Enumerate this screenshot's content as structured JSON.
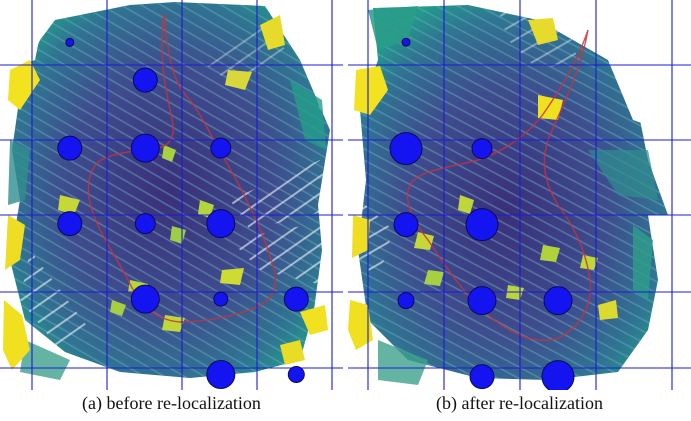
{
  "figure": {
    "colors": {
      "grid": "#1c1cd6",
      "landmark_fill": "#1414f0",
      "landmark_stroke": "#0a0a55",
      "trajectory": "#c8323c",
      "pointcloud_deep": "#3f3d86",
      "pointcloud_mid": "#2f6e90",
      "pointcloud_teal": "#1f9a8a",
      "pointcloud_yellow": "#f0e020",
      "pointcloud_green": "#8ad040"
    },
    "panels": [
      {
        "id": "a",
        "caption": "(a) before re-localization",
        "landmarks": [
          {
            "row": -0.3,
            "col": 0.5,
            "size": "tiny"
          },
          {
            "row": 0.2,
            "col": 1.5,
            "size": "medium"
          },
          {
            "row": 1.1,
            "col": 0.5,
            "size": "medium"
          },
          {
            "row": 1.1,
            "col": 1.5,
            "size": "large"
          },
          {
            "row": 1.1,
            "col": 2.5,
            "size": "small"
          },
          {
            "row": 2.1,
            "col": 0.5,
            "size": "medium"
          },
          {
            "row": 2.1,
            "col": 1.5,
            "size": "small"
          },
          {
            "row": 2.1,
            "col": 2.5,
            "size": "large"
          },
          {
            "row": 3.1,
            "col": 1.5,
            "size": "large"
          },
          {
            "row": 3.1,
            "col": 2.5,
            "size": "tiny2"
          },
          {
            "row": 3.1,
            "col": 3.5,
            "size": "medium"
          },
          {
            "row": 4.1,
            "col": 2.5,
            "size": "large"
          },
          {
            "row": 4.1,
            "col": 3.5,
            "size": "small2"
          }
        ]
      },
      {
        "id": "b",
        "caption": "(b) after re-localization",
        "landmarks": [
          {
            "row": -0.3,
            "col": 0.5,
            "size": "tiny"
          },
          {
            "row": 1.1,
            "col": 0.5,
            "size": "xlarge"
          },
          {
            "row": 1.1,
            "col": 1.5,
            "size": "small"
          },
          {
            "row": 2.1,
            "col": 0.5,
            "size": "medium"
          },
          {
            "row": 2.1,
            "col": 1.5,
            "size": "xlarge"
          },
          {
            "row": 3.1,
            "col": 0.5,
            "size": "small2"
          },
          {
            "row": 3.1,
            "col": 1.5,
            "size": "large"
          },
          {
            "row": 3.1,
            "col": 2.5,
            "size": "large"
          },
          {
            "row": 4.1,
            "col": 1.5,
            "size": "medium"
          },
          {
            "row": 4.1,
            "col": 2.5,
            "size": "xlarge"
          }
        ]
      }
    ]
  }
}
